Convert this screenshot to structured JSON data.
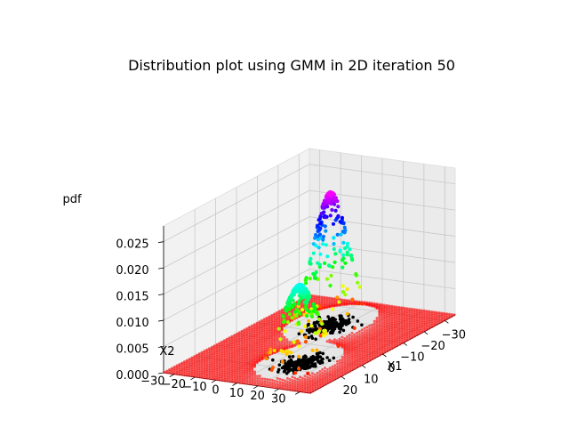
{
  "chart_data": {
    "type": "scatter",
    "projection": "3d",
    "title": "Distribution plot using GMM in 2D iteration 50",
    "xlabel": "X1",
    "ylabel": "X2",
    "zlabel": "pdf",
    "xlim": [
      -35,
      35
    ],
    "ylim": [
      -35,
      35
    ],
    "zlim": [
      0,
      0.028
    ],
    "x_ticks": [
      "20",
      "10",
      "0",
      "−10",
      "−20",
      "−30"
    ],
    "x_tick_values": [
      20,
      10,
      0,
      -10,
      -20,
      -30
    ],
    "y_ticks": [
      "−30",
      "−20",
      "−10",
      "0",
      "10",
      "20",
      "30"
    ],
    "y_tick_values": [
      -30,
      -20,
      -10,
      0,
      10,
      20,
      30
    ],
    "z_ticks": [
      "0.000",
      "0.005",
      "0.010",
      "0.015",
      "0.020",
      "0.025"
    ],
    "z_tick_values": [
      0,
      0.005,
      0.01,
      0.015,
      0.02,
      0.025
    ],
    "grid": true,
    "colormap": "hsv",
    "grid_surface": {
      "x_range": [
        -35,
        35
      ],
      "y_range": [
        -35,
        35
      ],
      "color": "#ff0000"
    },
    "components": [
      {
        "mean": [
          15,
          10
        ],
        "peak_pdf": 0.015,
        "spread": 6
      },
      {
        "mean": [
          -15,
          -5
        ],
        "peak_pdf": 0.0255,
        "spread": 6
      }
    ],
    "data_clusters": [
      {
        "center": [
          15,
          10
        ],
        "spread": 4,
        "color": "#000000"
      },
      {
        "center": [
          -15,
          -5
        ],
        "spread": 4,
        "color": "#000000"
      }
    ]
  }
}
